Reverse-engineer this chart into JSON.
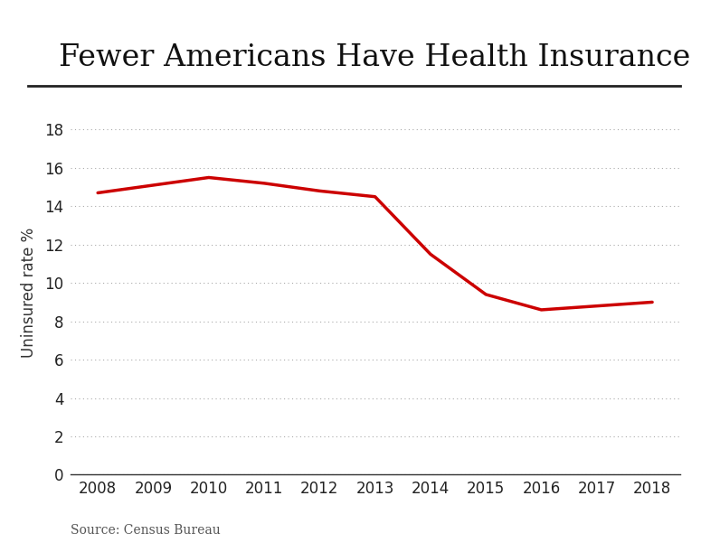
{
  "title": "Fewer Americans Have Health Insurance",
  "xlabel": "",
  "ylabel": "Uninsured rate %",
  "source": "Source: Census Bureau",
  "years": [
    2008,
    2009,
    2010,
    2011,
    2012,
    2013,
    2014,
    2015,
    2016,
    2017,
    2018
  ],
  "values": [
    14.7,
    15.1,
    15.5,
    15.2,
    14.8,
    14.5,
    11.5,
    9.4,
    8.6,
    8.8,
    9.0
  ],
  "line_color": "#cc0000",
  "line_width": 2.5,
  "ylim": [
    0,
    19
  ],
  "yticks": [
    0,
    2,
    4,
    6,
    8,
    10,
    12,
    14,
    16,
    18
  ],
  "background_color": "#ffffff",
  "title_fontsize": 24,
  "ylabel_fontsize": 12,
  "tick_fontsize": 12,
  "source_fontsize": 10,
  "grid_color": "#aaaaaa",
  "title_color": "#111111",
  "spine_color": "#333333",
  "text_color": "#555555"
}
